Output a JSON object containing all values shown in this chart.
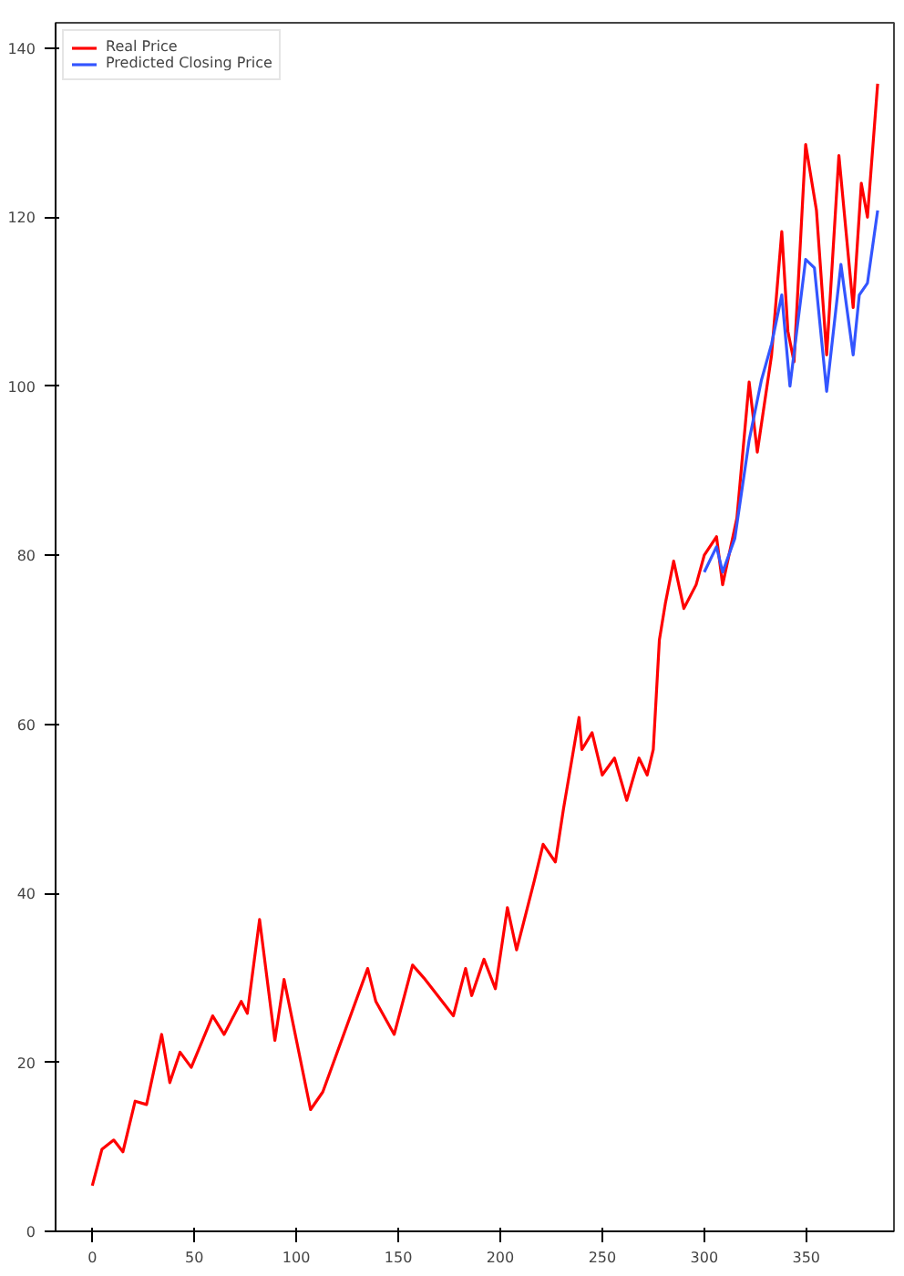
{
  "chart_data": {
    "type": "line",
    "xlim": [
      -18,
      393
    ],
    "ylim": [
      0,
      143
    ],
    "xticks": [
      0,
      50,
      100,
      150,
      200,
      250,
      300,
      350
    ],
    "yticks": [
      0,
      20,
      40,
      60,
      80,
      100,
      120,
      140
    ],
    "legend": "top left",
    "grid": false,
    "line_style": "solid",
    "marker": "none",
    "series": [
      {
        "name": "Real Price",
        "color": "#ff0000",
        "x": [
          0,
          4.7,
          10.5,
          15,
          21,
          26.6,
          34,
          38,
          43,
          48.5,
          59,
          64.6,
          73,
          76,
          82,
          89.5,
          94,
          107,
          113,
          135,
          139,
          148,
          157,
          162.5,
          177,
          183,
          186,
          192,
          197.6,
          203.5,
          208,
          216.7,
          221,
          227,
          231,
          238.6,
          240,
          245,
          250,
          256,
          262,
          268,
          272,
          275,
          278,
          281,
          285,
          290,
          296,
          300,
          306,
          309,
          316,
          322,
          326,
          333,
          338,
          341,
          344,
          349.7,
          355,
          360,
          366,
          373,
          377,
          380,
          385
        ],
        "values": [
          5.4,
          9.7,
          10.8,
          9.4,
          15.4,
          15,
          23.3,
          17.6,
          21.2,
          19.4,
          25.5,
          23.3,
          27.2,
          25.8,
          36.9,
          22.6,
          29.8,
          14.4,
          16.5,
          31.1,
          27.2,
          23.3,
          31.5,
          30,
          25.5,
          31.1,
          27.9,
          32.2,
          28.7,
          38.3,
          33.3,
          41.5,
          45.8,
          43.7,
          50,
          60.8,
          57,
          59,
          54,
          56,
          51,
          56,
          54,
          57,
          70,
          74.4,
          79.3,
          73.7,
          76.5,
          80,
          82.2,
          76.5,
          84.4,
          100.5,
          92.2,
          103.7,
          118.3,
          106.5,
          102.9,
          128.6,
          120.8,
          103.7,
          127.3,
          109.3,
          124,
          120,
          135.8
        ]
      },
      {
        "name": "Predicted Closing Price",
        "color": "#3355ff",
        "x": [
          300,
          306,
          309,
          315,
          322,
          328,
          333,
          338,
          342,
          349.7,
          354,
          360,
          367,
          373,
          376,
          380,
          385
        ],
        "values": [
          78,
          81,
          78,
          82,
          93.6,
          100.7,
          105,
          110.8,
          100,
          115,
          114,
          99.4,
          114.4,
          103.7,
          110.8,
          112.2,
          120.8
        ]
      }
    ]
  }
}
